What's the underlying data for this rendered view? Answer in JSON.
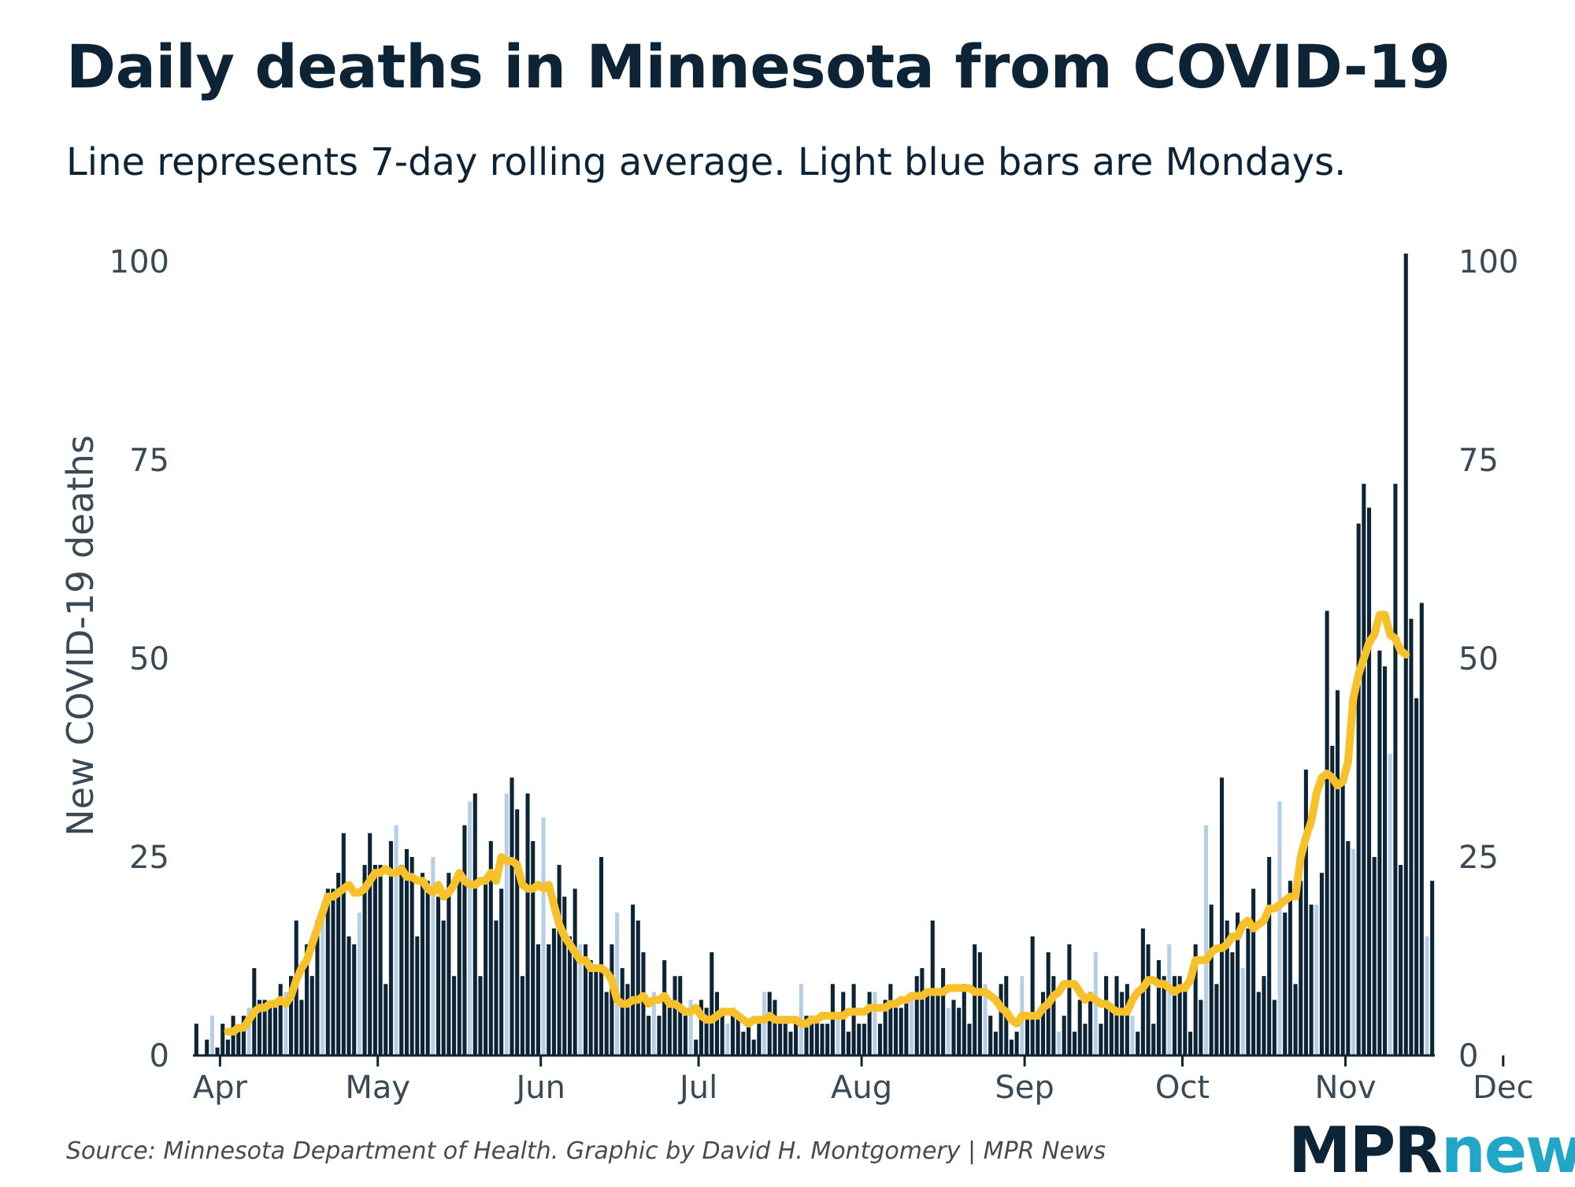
{
  "title": "Daily deaths in Minnesota from COVID-19",
  "subtitle": "Line represents 7-day rolling average. Light blue bars are Mondays.",
  "source": "Source: Minnesota Department of Health. Graphic by David H. Montgomery | MPR News",
  "logo": {
    "part1": "MPR",
    "part2": "news"
  },
  "colors": {
    "bar": "#0d2436",
    "monday_bar": "#b7cfe6",
    "line": "#f7c12b",
    "text": "#0d2436"
  },
  "chart_data": {
    "type": "bar",
    "title": "Daily deaths in Minnesota from COVID-19",
    "ylabel": "New COVID-19 deaths",
    "xlabel": "",
    "ylim": [
      0,
      100
    ],
    "yticks": [
      0,
      25,
      50,
      75,
      100
    ],
    "month_ticks": [
      "Apr",
      "May",
      "Jun",
      "Jul",
      "Aug",
      "Sep",
      "Oct",
      "Nov",
      "Dec"
    ],
    "start_date": "2020-03-27",
    "first_monday_index": 3,
    "series": [
      {
        "name": "Daily deaths",
        "values": [
          4,
          0,
          2,
          5,
          1,
          4,
          2,
          5,
          3,
          5,
          6,
          11,
          7,
          7,
          6,
          6,
          9,
          8,
          10,
          17,
          7,
          14,
          10,
          17,
          19,
          21,
          21,
          23,
          28,
          15,
          14,
          18,
          24,
          28,
          24,
          24,
          9,
          27,
          29,
          24,
          26,
          25,
          15,
          23,
          22,
          25,
          20,
          17,
          23,
          10,
          22,
          29,
          32,
          33,
          10,
          22,
          27,
          17,
          21,
          33,
          35,
          31,
          10,
          33,
          27,
          14,
          30,
          14,
          16,
          24,
          20,
          15,
          21,
          14,
          14,
          12,
          11,
          25,
          8,
          14,
          18,
          11,
          9,
          19,
          17,
          13,
          5,
          8,
          5,
          12,
          6,
          10,
          10,
          5,
          7,
          2,
          7,
          6,
          13,
          8,
          5,
          4,
          6,
          5,
          3,
          4,
          2,
          4,
          8,
          8,
          7,
          4,
          4,
          3,
          4,
          9,
          5,
          5,
          5,
          4,
          4,
          9,
          5,
          8,
          3,
          9,
          4,
          4,
          8,
          8,
          4,
          7,
          9,
          6,
          6,
          7,
          8,
          10,
          11,
          8,
          17,
          8,
          11,
          6,
          7,
          6,
          9,
          4,
          14,
          13,
          9,
          5,
          3,
          9,
          10,
          2,
          3,
          10,
          5,
          15,
          5,
          8,
          13,
          10,
          3,
          5,
          14,
          3,
          7,
          4,
          8,
          13,
          4,
          10,
          6,
          10,
          8,
          9,
          5,
          3,
          16,
          14,
          4,
          12,
          10,
          14,
          10,
          10,
          9,
          3,
          14,
          7,
          29,
          19,
          9,
          35,
          17,
          13,
          18,
          11,
          16,
          21,
          8,
          10,
          25,
          7,
          32,
          18,
          22,
          9,
          22,
          36,
          19,
          19,
          23,
          56,
          39,
          46,
          35,
          27,
          26,
          67,
          72,
          69,
          25,
          51,
          49,
          38,
          72,
          24,
          101,
          55,
          45,
          57,
          15,
          22
        ],
        "mondays_label": "Light blue bars are Mondays"
      },
      {
        "name": "7-day rolling average",
        "values": [
          null,
          null,
          null,
          null,
          null,
          null,
          3,
          3,
          3.5,
          3.5,
          4.5,
          5.5,
          6,
          6,
          6.5,
          6.5,
          7,
          6.5,
          7.5,
          9.5,
          11,
          12,
          14,
          16,
          18,
          20,
          20,
          20.5,
          21,
          21.5,
          20.5,
          20.5,
          21,
          22,
          23,
          23,
          23.5,
          23,
          23,
          23.5,
          22.5,
          22.5,
          22,
          22,
          21,
          20.5,
          21.5,
          20,
          20.5,
          21.5,
          23,
          22,
          21.5,
          21.5,
          22,
          22,
          23,
          22,
          25,
          24.5,
          24.5,
          24,
          21.5,
          21,
          21,
          21.5,
          21,
          21.5,
          19,
          16.5,
          15,
          14,
          13,
          12,
          12,
          11,
          11,
          11,
          10.5,
          9.5,
          7,
          6.5,
          6.5,
          7,
          7,
          7.5,
          6.5,
          7,
          7,
          7.5,
          6.5,
          6.5,
          6,
          5.5,
          5.5,
          6,
          5,
          4.5,
          4.5,
          5,
          5.5,
          5.5,
          5.5,
          5,
          4.5,
          4,
          4.5,
          4.5,
          4.5,
          5,
          4.5,
          4.5,
          4.5,
          4.5,
          4.5,
          4,
          4,
          4.5,
          4.5,
          5,
          5,
          5,
          5,
          5,
          5.5,
          5.5,
          5.5,
          5.5,
          6,
          6,
          6,
          6,
          6.5,
          6.5,
          7,
          7,
          7.5,
          7.5,
          7.5,
          8,
          8,
          8,
          8,
          8.5,
          8.5,
          8.5,
          8.5,
          8.5,
          8,
          8,
          8,
          7.5,
          7,
          6,
          5.5,
          4.5,
          4,
          5,
          5,
          5,
          5,
          6,
          6.5,
          7.5,
          8,
          9,
          9,
          9,
          8,
          7,
          7.5,
          7,
          6.5,
          6.5,
          6,
          5.5,
          5.5,
          5.5,
          7,
          8,
          8.5,
          9.5,
          9.5,
          9,
          9,
          8.5,
          8,
          8.5,
          8.5,
          9.5,
          12,
          12,
          12,
          13,
          13.5,
          13.5,
          14,
          15,
          15,
          16.5,
          17,
          16,
          16.5,
          17,
          18.5,
          18.5,
          19,
          19.5,
          20,
          20,
          25,
          27.5,
          29.5,
          33,
          35,
          35.5,
          35,
          34,
          34.5,
          37,
          45,
          48,
          50,
          52,
          53,
          55.5,
          55.5,
          53,
          52.5,
          51,
          50.5
        ]
      }
    ]
  }
}
